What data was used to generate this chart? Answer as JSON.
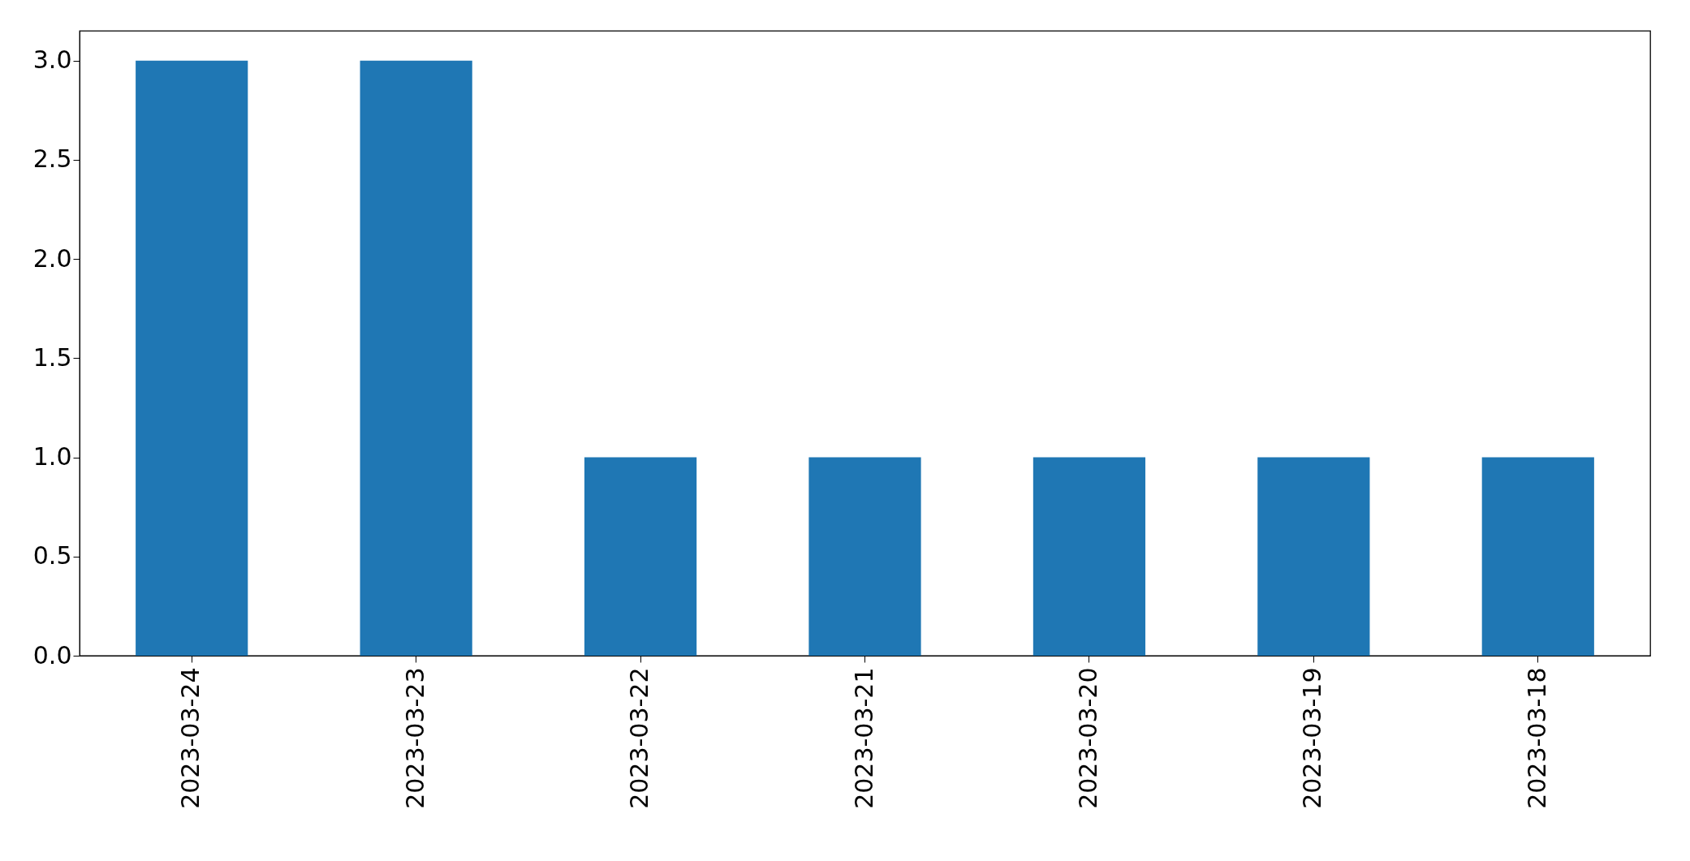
{
  "chart_data": {
    "type": "bar",
    "categories": [
      "2023-03-24",
      "2023-03-23",
      "2023-03-22",
      "2023-03-21",
      "2023-03-20",
      "2023-03-19",
      "2023-03-18"
    ],
    "values": [
      3,
      3,
      1,
      1,
      1,
      1,
      1
    ],
    "color": "#1f77b4",
    "ylim": [
      0,
      3.15
    ],
    "yticks": [
      {
        "value": 0,
        "label": "0.0"
      },
      {
        "value": 0.5,
        "label": "0.5"
      },
      {
        "value": 1,
        "label": "1.0"
      },
      {
        "value": 1.5,
        "label": "1.5"
      },
      {
        "value": 2,
        "label": "2.0"
      },
      {
        "value": 2.5,
        "label": "2.5"
      },
      {
        "value": 3,
        "label": "3.0"
      }
    ],
    "grid": false
  }
}
